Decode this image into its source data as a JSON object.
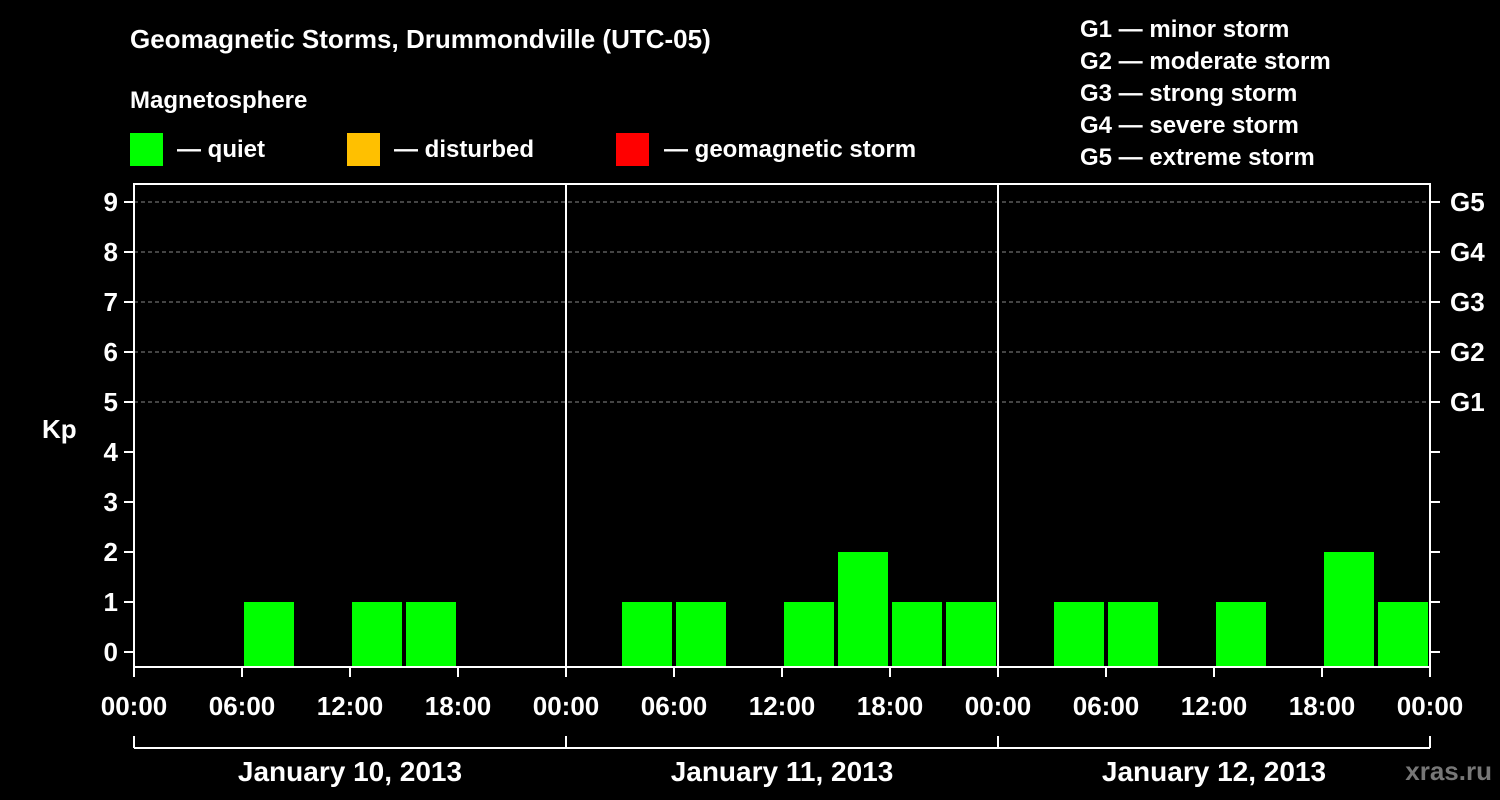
{
  "title": "Geomagnetic Storms, Drummondville (UTC-05)",
  "legend": {
    "heading": "Magnetosphere",
    "items": [
      {
        "label": "— quiet",
        "color": "#00ff00"
      },
      {
        "label": "— disturbed",
        "color": "#ffc000"
      },
      {
        "label": "— geomagnetic storm",
        "color": "#ff0000"
      }
    ]
  },
  "storm_scale": [
    "G1 — minor storm",
    "G2 — moderate storm",
    "G3 — strong storm",
    "G4 — severe storm",
    "G5 — extreme storm"
  ],
  "watermark": "xras.ru",
  "chart_data": {
    "type": "bar",
    "ylabel": "Kp",
    "ylim": [
      0,
      9
    ],
    "yticks": [
      "0",
      "1",
      "2",
      "3",
      "4",
      "5",
      "6",
      "7",
      "8",
      "9"
    ],
    "right_ticks": [
      {
        "kp": 5,
        "label": "G1"
      },
      {
        "kp": 6,
        "label": "G2"
      },
      {
        "kp": 7,
        "label": "G3"
      },
      {
        "kp": 8,
        "label": "G4"
      },
      {
        "kp": 9,
        "label": "G5"
      }
    ],
    "xticks": [
      "00:00",
      "06:00",
      "12:00",
      "18:00",
      "00:00",
      "06:00",
      "12:00",
      "18:00",
      "00:00",
      "06:00",
      "12:00",
      "18:00",
      "00:00"
    ],
    "days": [
      "January 10, 2013",
      "January 11, 2013",
      "January 12, 2013"
    ],
    "grid": "dashed at Kp 5-9",
    "interval_hours": 3,
    "series": [
      {
        "values": [
          0,
          0,
          1,
          0,
          1,
          1,
          0,
          0,
          0,
          1,
          1,
          0,
          1,
          2,
          1,
          1,
          0,
          1,
          1,
          0,
          1,
          0,
          2,
          1
        ]
      }
    ]
  }
}
